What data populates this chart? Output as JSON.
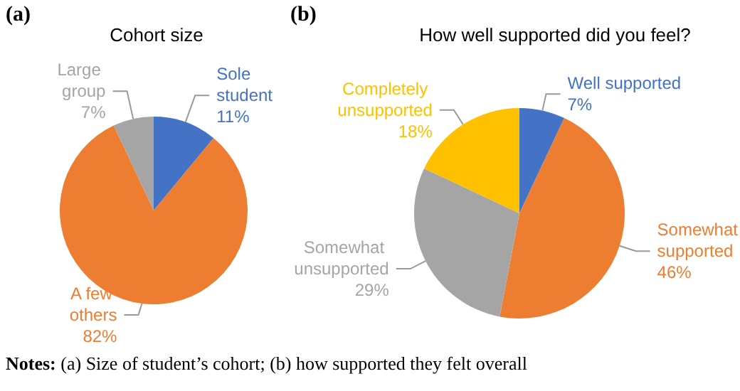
{
  "chart_data": [
    {
      "type": "pie",
      "title": "Cohort size",
      "annotations": [
        "(a)",
        "Notes: (a) Size of student’s cohort; (b) how supported they felt overall"
      ],
      "categories": [
        "Sole student",
        "A few others",
        "Large group"
      ],
      "values": [
        11,
        82,
        7
      ],
      "value_labels": [
        "11%",
        "82%",
        "7%"
      ],
      "colors": [
        "#4472c4",
        "#ed7d31",
        "#a5a5a5"
      ],
      "legend": false
    },
    {
      "type": "pie",
      "title": "How well supported did you feel?",
      "annotations": [
        "(b)"
      ],
      "categories": [
        "Well supported",
        "Somewhat supported",
        "Somewhat unsupported",
        "Completely unsupported"
      ],
      "values": [
        7,
        46,
        29,
        18
      ],
      "value_labels": [
        "7%",
        "46%",
        "29%",
        "18%"
      ],
      "colors": [
        "#4472c4",
        "#ed7d31",
        "#a5a5a5",
        "#ffc000"
      ],
      "legend": false
    }
  ]
}
